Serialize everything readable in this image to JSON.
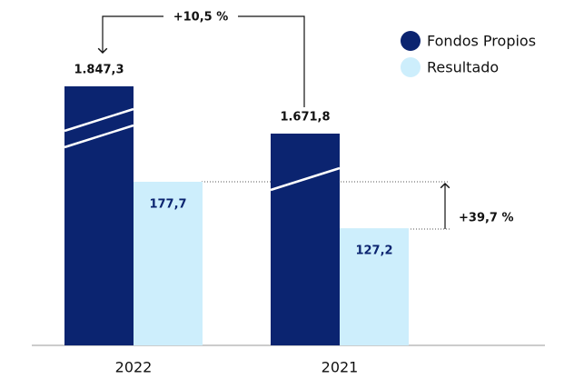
{
  "chart_data": {
    "type": "bar",
    "categories": [
      "2022",
      "2021"
    ],
    "series": [
      {
        "name": "Fondos Propios",
        "color": "#0b2470",
        "values": [
          1847.3,
          1671.8
        ],
        "value_labels": [
          "1.847,3",
          "1.671,8"
        ]
      },
      {
        "name": "Resultado",
        "color": "#cdeefc",
        "values": [
          177.7,
          127.2
        ],
        "value_labels": [
          "177,7",
          "127,2"
        ]
      }
    ],
    "annotations": [
      "+10,5 %",
      "+39,7 %"
    ]
  }
}
